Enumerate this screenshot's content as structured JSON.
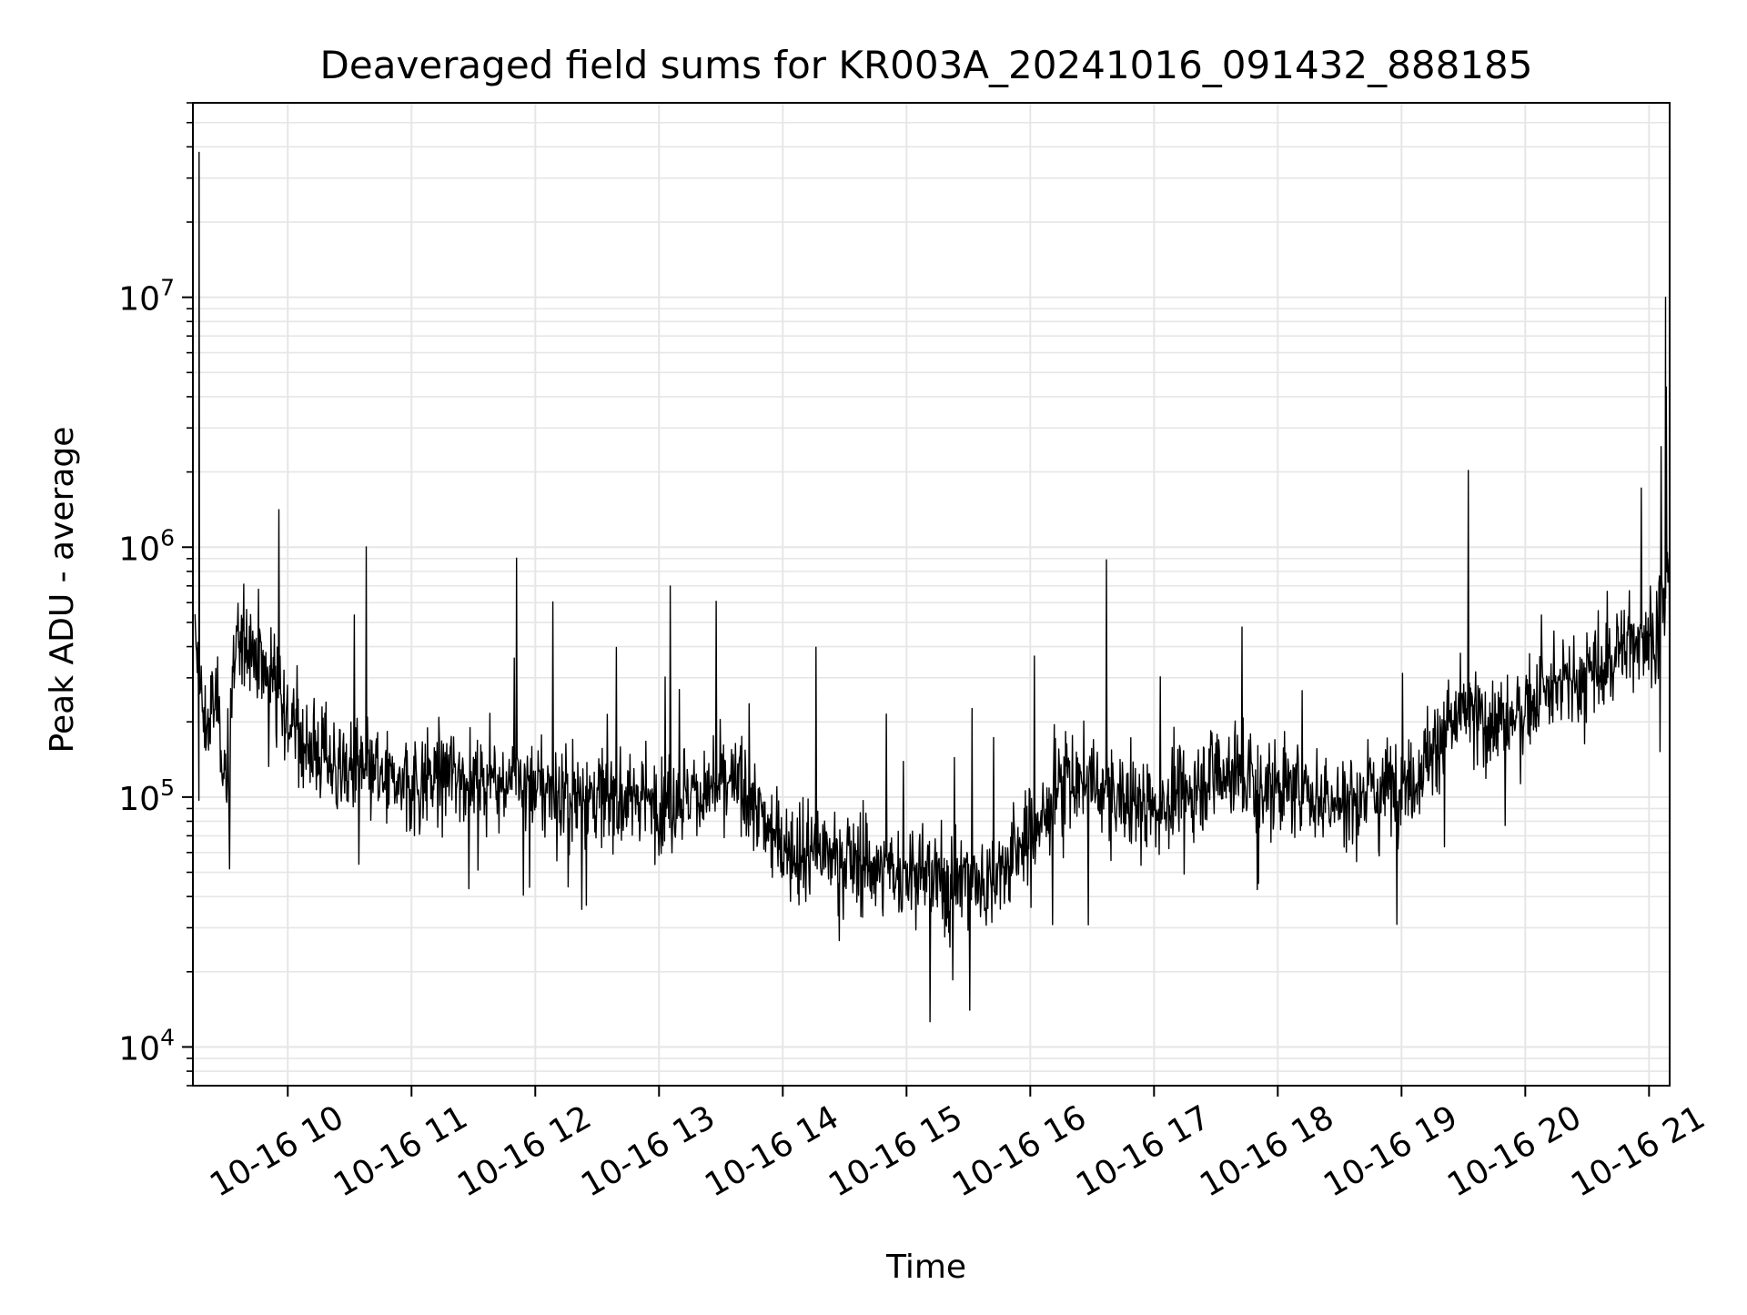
{
  "chart_data": {
    "type": "line",
    "title": "Deaveraged field sums for KR003A_20241016_091432_888185",
    "xlabel": "Time",
    "ylabel": "Peak ADU - average",
    "yscale": "log",
    "xlim": [
      "2024-10-16 09:14",
      "2024-10-16 21:10"
    ],
    "ylim": [
      7000,
      60000000
    ],
    "grid": true,
    "line_color": "#000000",
    "grid_color": "#e6e6e6",
    "x_ticks": [
      {
        "value": "2024-10-16 10:00",
        "label": "10-16 10"
      },
      {
        "value": "2024-10-16 11:00",
        "label": "10-16 11"
      },
      {
        "value": "2024-10-16 12:00",
        "label": "10-16 12"
      },
      {
        "value": "2024-10-16 13:00",
        "label": "10-16 13"
      },
      {
        "value": "2024-10-16 14:00",
        "label": "10-16 14"
      },
      {
        "value": "2024-10-16 15:00",
        "label": "10-16 15"
      },
      {
        "value": "2024-10-16 16:00",
        "label": "10-16 16"
      },
      {
        "value": "2024-10-16 17:00",
        "label": "10-16 17"
      },
      {
        "value": "2024-10-16 18:00",
        "label": "10-16 18"
      },
      {
        "value": "2024-10-16 19:00",
        "label": "10-16 19"
      },
      {
        "value": "2024-10-16 20:00",
        "label": "10-16 20"
      },
      {
        "value": "2024-10-16 21:00",
        "label": "10-16 21"
      }
    ],
    "y_ticks": [
      {
        "value": 10000,
        "base": "10",
        "exp": "4"
      },
      {
        "value": 100000,
        "base": "10",
        "exp": "5"
      },
      {
        "value": 1000000,
        "base": "10",
        "exp": "6"
      },
      {
        "value": 10000000,
        "base": "10",
        "exp": "7"
      }
    ],
    "series": [
      {
        "x": [
          "2024-10-16 09:15",
          "2024-10-16 09:20",
          "2024-10-16 09:25",
          "2024-10-16 09:30",
          "2024-10-16 09:35",
          "2024-10-16 09:40",
          "2024-10-16 09:45",
          "2024-10-16 09:50",
          "2024-10-16 09:55",
          "2024-10-16 10:00",
          "2024-10-16 10:10",
          "2024-10-16 10:20",
          "2024-10-16 10:30",
          "2024-10-16 10:40",
          "2024-10-16 10:50",
          "2024-10-16 11:00",
          "2024-10-16 11:10",
          "2024-10-16 11:20",
          "2024-10-16 11:30",
          "2024-10-16 11:40",
          "2024-10-16 11:50",
          "2024-10-16 12:00",
          "2024-10-16 12:10",
          "2024-10-16 12:20",
          "2024-10-16 12:30",
          "2024-10-16 12:40",
          "2024-10-16 12:50",
          "2024-10-16 13:00",
          "2024-10-16 13:10",
          "2024-10-16 13:20",
          "2024-10-16 13:30",
          "2024-10-16 13:40",
          "2024-10-16 13:50",
          "2024-10-16 14:00",
          "2024-10-16 14:10",
          "2024-10-16 14:20",
          "2024-10-16 14:30",
          "2024-10-16 14:40",
          "2024-10-16 14:50",
          "2024-10-16 15:00",
          "2024-10-16 15:10",
          "2024-10-16 15:20",
          "2024-10-16 15:30",
          "2024-10-16 15:40",
          "2024-10-16 15:50",
          "2024-10-16 16:00",
          "2024-10-16 16:10",
          "2024-10-16 16:20",
          "2024-10-16 16:30",
          "2024-10-16 16:40",
          "2024-10-16 16:50",
          "2024-10-16 17:00",
          "2024-10-16 17:10",
          "2024-10-16 17:20",
          "2024-10-16 17:30",
          "2024-10-16 17:40",
          "2024-10-16 17:50",
          "2024-10-16 18:00",
          "2024-10-16 18:10",
          "2024-10-16 18:20",
          "2024-10-16 18:30",
          "2024-10-16 18:40",
          "2024-10-16 18:50",
          "2024-10-16 19:00",
          "2024-10-16 19:10",
          "2024-10-16 19:20",
          "2024-10-16 19:30",
          "2024-10-16 19:40",
          "2024-10-16 19:50",
          "2024-10-16 20:00",
          "2024-10-16 20:10",
          "2024-10-16 20:20",
          "2024-10-16 20:30",
          "2024-10-16 20:40",
          "2024-10-16 20:50",
          "2024-10-16 21:00",
          "2024-10-16 21:05",
          "2024-10-16 21:10"
        ],
        "y": [
          400000,
          180000,
          250000,
          120000,
          400000,
          450000,
          380000,
          300000,
          350000,
          200000,
          160000,
          140000,
          130000,
          120000,
          115000,
          110000,
          120000,
          125000,
          120000,
          115000,
          120000,
          110000,
          105000,
          100000,
          100000,
          95000,
          100000,
          95000,
          100000,
          105000,
          110000,
          110000,
          80000,
          65000,
          60000,
          60000,
          55000,
          55000,
          50000,
          50000,
          48000,
          45000,
          50000,
          45000,
          55000,
          70000,
          95000,
          120000,
          110000,
          100000,
          95000,
          90000,
          100000,
          110000,
          130000,
          125000,
          110000,
          110000,
          105000,
          100000,
          95000,
          100000,
          110000,
          115000,
          130000,
          180000,
          220000,
          200000,
          200000,
          230000,
          260000,
          280000,
          300000,
          350000,
          420000,
          450000,
          500000,
          650000
        ]
      }
    ],
    "annotations": [
      {
        "x": "2024-10-16 09:17",
        "y": 38000000,
        "label": ""
      },
      {
        "x": "2024-10-16 21:08",
        "y": 10000000,
        "label": ""
      }
    ]
  }
}
